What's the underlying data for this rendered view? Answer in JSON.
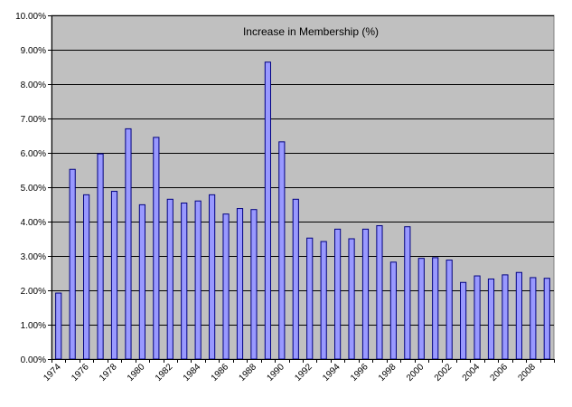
{
  "chart_data": {
    "type": "bar",
    "title": "Increase in Membership (%)",
    "xlabel": "",
    "ylabel": "",
    "ylim": [
      0,
      10
    ],
    "grid": true,
    "legend": "none",
    "colors": {
      "plot_background": "#c0c0c0",
      "bar_fill": "#9999ff",
      "bar_stroke": "#000080",
      "gridline": "#000000"
    },
    "y_ticks": [
      "0.00%",
      "1.00%",
      "2.00%",
      "3.00%",
      "4.00%",
      "5.00%",
      "6.00%",
      "7.00%",
      "8.00%",
      "9.00%",
      "10.00%"
    ],
    "x_tick_labels": [
      "1974",
      "1976",
      "1978",
      "1980",
      "1982",
      "1984",
      "1986",
      "1988",
      "1990",
      "1992",
      "1994",
      "1996",
      "1998",
      "2000",
      "2002",
      "2004",
      "2006",
      "2008"
    ],
    "categories": [
      "1974",
      "1975",
      "1976",
      "1977",
      "1978",
      "1979",
      "1980",
      "1981",
      "1982",
      "1983",
      "1984",
      "1985",
      "1986",
      "1987",
      "1988",
      "1989",
      "1990",
      "1991",
      "1992",
      "1993",
      "1994",
      "1995",
      "1996",
      "1997",
      "1998",
      "1999",
      "2000",
      "2001",
      "2002",
      "2003",
      "2004",
      "2005",
      "2006",
      "2007",
      "2008",
      "2009"
    ],
    "values": [
      1.92,
      5.52,
      4.78,
      5.97,
      4.88,
      6.7,
      4.49,
      6.45,
      4.65,
      4.54,
      4.6,
      4.78,
      4.22,
      4.38,
      4.35,
      8.64,
      6.32,
      4.65,
      3.52,
      3.42,
      3.78,
      3.5,
      3.78,
      3.88,
      2.82,
      3.85,
      2.93,
      2.95,
      2.88,
      2.23,
      2.42,
      2.33,
      2.45,
      2.52,
      2.37,
      2.35
    ]
  }
}
